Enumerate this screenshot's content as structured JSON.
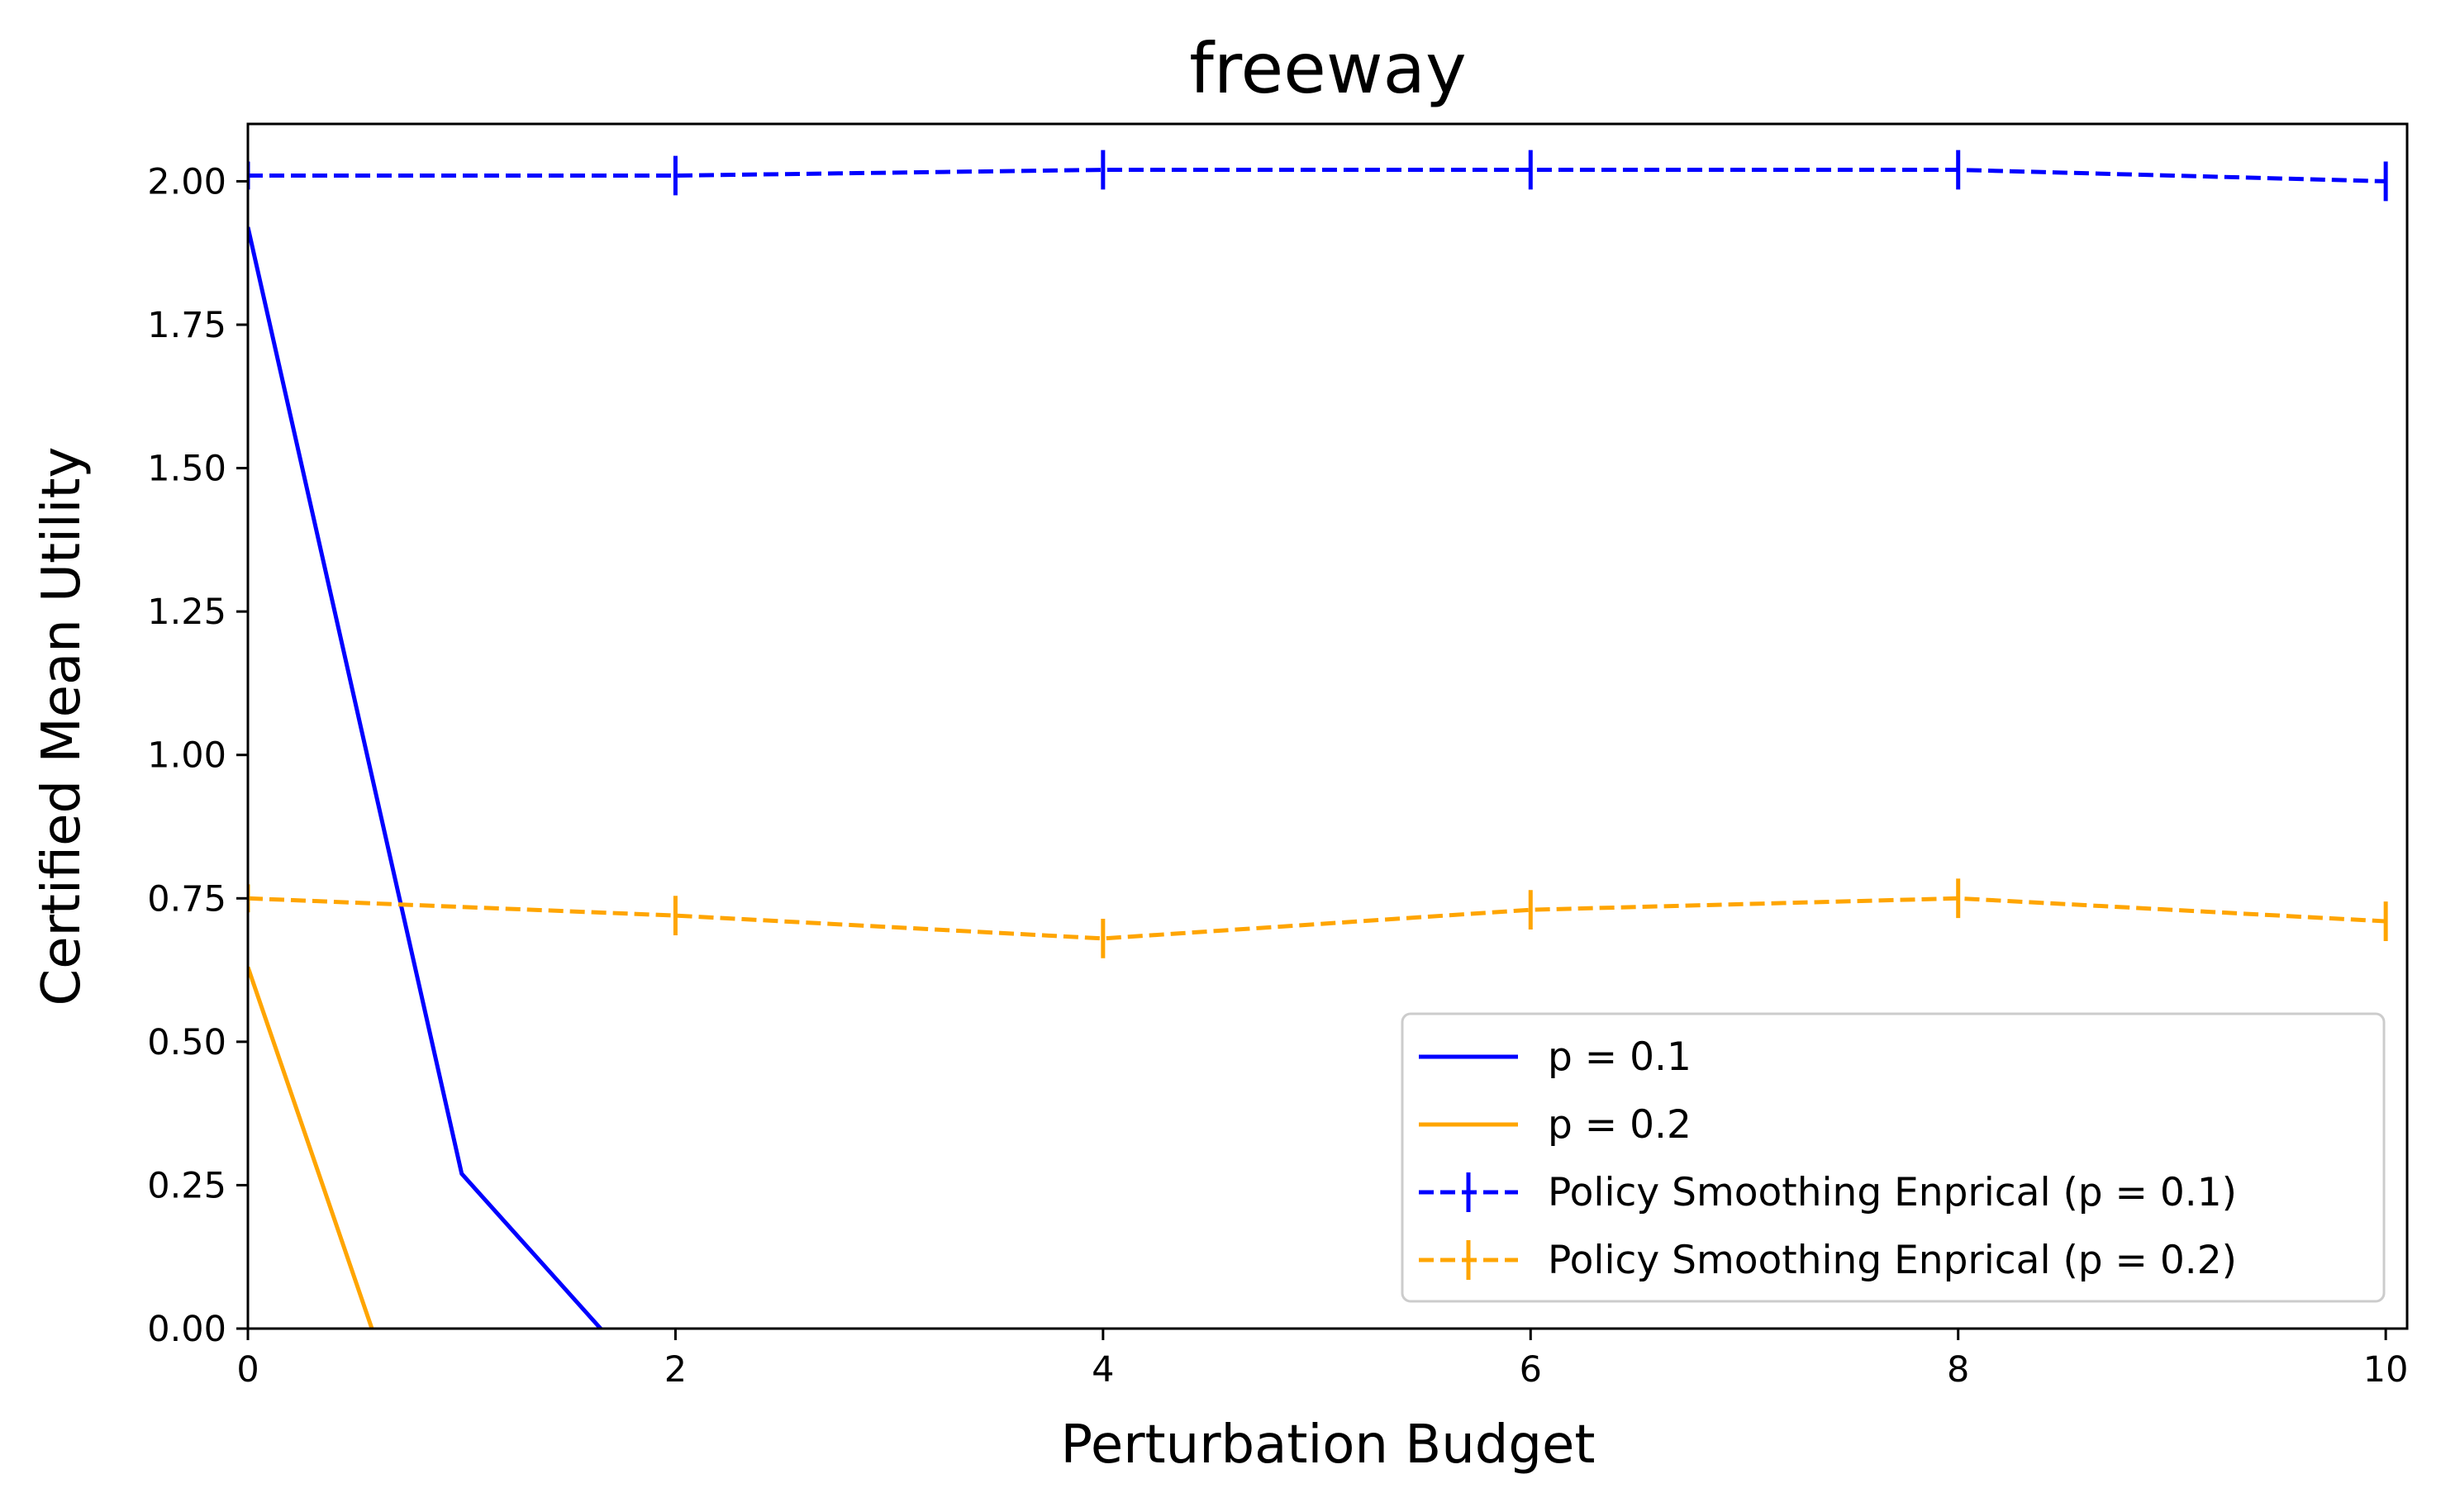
{
  "chart_data": {
    "type": "line",
    "title": "freeway",
    "xlabel": "Perturbation Budget",
    "ylabel": "Certified Mean Utility",
    "xlim": [
      0,
      10.1
    ],
    "ylim": [
      0,
      2.1
    ],
    "grid": false,
    "legend_position": "lower-right",
    "x_ticks": [
      0,
      2,
      4,
      6,
      8,
      10
    ],
    "x_tick_labels": [
      "0",
      "2",
      "4",
      "6",
      "8",
      "10"
    ],
    "y_ticks": [
      0,
      0.25,
      0.5,
      0.75,
      1.0,
      1.25,
      1.5,
      1.75,
      2.0
    ],
    "y_tick_labels": [
      "0.00",
      "0.25",
      "0.50",
      "0.75",
      "1.00",
      "1.25",
      "1.50",
      "1.75",
      "2.00"
    ],
    "series": [
      {
        "name": "p = 0.1",
        "color": "#0000ff",
        "style": "solid",
        "errorbars": false,
        "x": [
          0,
          1,
          1.65
        ],
        "y": [
          1.92,
          0.27,
          0.0
        ]
      },
      {
        "name": "p = 0.2",
        "color": "#ffa500",
        "style": "solid",
        "errorbars": false,
        "x": [
          0,
          0.58
        ],
        "y": [
          0.63,
          0.0
        ]
      },
      {
        "name": "Policy Smoothing Enprical (p = 0.1)",
        "color": "#0000ff",
        "style": "dashed",
        "errorbars": true,
        "x": [
          0,
          2,
          4,
          6,
          8,
          10
        ],
        "y": [
          2.01,
          2.01,
          2.02,
          2.02,
          2.02,
          2.0
        ],
        "yerr": [
          0.01,
          0.02,
          0.02,
          0.02,
          0.02,
          0.02
        ]
      },
      {
        "name": "Policy Smoothing Enprical (p = 0.2)",
        "color": "#ffa500",
        "style": "dashed",
        "errorbars": true,
        "x": [
          0,
          2,
          4,
          6,
          8,
          10
        ],
        "y": [
          0.75,
          0.72,
          0.68,
          0.73,
          0.75,
          0.71
        ],
        "yerr": [
          0.01,
          0.02,
          0.02,
          0.02,
          0.02,
          0.02
        ]
      }
    ]
  }
}
